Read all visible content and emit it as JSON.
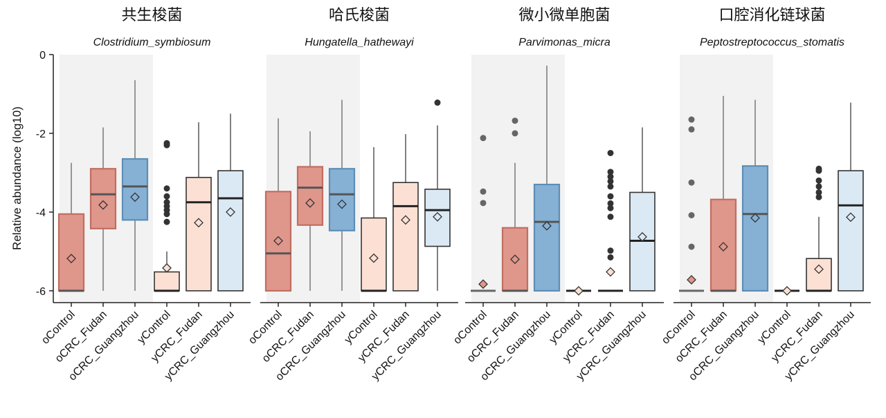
{
  "chart_data": {
    "type": "boxplot",
    "ylabel": "Relative abundance (log10)",
    "ylim": [
      -6.3,
      0
    ],
    "yticks": [
      0,
      -2,
      -4,
      -6
    ],
    "grid": false,
    "legend": "none",
    "categories": [
      "oControl",
      "oCRC_Fudan",
      "oCRC_Guangzhou",
      "yControl",
      "yCRC_Fudan",
      "yCRC_Guangzhou"
    ],
    "colors": {
      "oControl_fill": "#df968b",
      "oControl_line": "#c26d61",
      "oCRC_Fudan_fill": "#df968b",
      "oCRC_Fudan_line": "#c26d61",
      "oCRC_Guangzhou_fill": "#86b1d4",
      "oCRC_Guangzhou_line": "#5c8db6",
      "yControl_fill": "#fde0d4",
      "yControl_line": "#333333",
      "yCRC_Fudan_fill": "#fde0d4",
      "yCRC_Fudan_line": "#333333",
      "yCRC_Guangzhou_fill": "#dbe9f4",
      "yCRC_Guangzhou_line": "#333333",
      "shade": "#f2f2f2"
    },
    "panels": [
      {
        "title_cn": "共生梭菌",
        "title_sp": "Clostridium_symbiosum",
        "boxes": [
          {
            "q1": -6.0,
            "median": -6.0,
            "q3": -4.05,
            "lo": -6.0,
            "hi": -2.75,
            "mean": -5.18,
            "outliers": []
          },
          {
            "q1": -4.42,
            "median": -3.55,
            "q3": -2.9,
            "lo": -6.0,
            "hi": -1.85,
            "mean": -3.82,
            "outliers": []
          },
          {
            "q1": -4.2,
            "median": -3.35,
            "q3": -2.65,
            "lo": -6.0,
            "hi": -0.65,
            "mean": -3.62,
            "outliers": []
          },
          {
            "q1": -6.0,
            "median": -6.0,
            "q3": -5.52,
            "lo": -6.0,
            "hi": -5.0,
            "mean": -5.42,
            "outliers": [
              -2.25,
              -2.3,
              -3.4,
              -3.6,
              -3.75,
              -3.85,
              -3.95,
              -4.05,
              -4.25
            ]
          },
          {
            "q1": -6.0,
            "median": -3.75,
            "q3": -3.12,
            "lo": -6.0,
            "hi": -1.72,
            "mean": -4.27,
            "outliers": []
          },
          {
            "q1": -6.0,
            "median": -3.65,
            "q3": -2.95,
            "lo": -6.0,
            "hi": -1.5,
            "mean": -4.0,
            "outliers": []
          }
        ]
      },
      {
        "title_cn": "哈氏梭菌",
        "title_sp": "Hungatella_hathewayi",
        "boxes": [
          {
            "q1": -6.0,
            "median": -5.05,
            "q3": -3.48,
            "lo": -6.0,
            "hi": -1.62,
            "mean": -4.73,
            "outliers": []
          },
          {
            "q1": -4.33,
            "median": -3.38,
            "q3": -2.85,
            "lo": -6.0,
            "hi": -1.95,
            "mean": -3.77,
            "outliers": []
          },
          {
            "q1": -4.47,
            "median": -3.55,
            "q3": -2.9,
            "lo": -6.0,
            "hi": -1.15,
            "mean": -3.8,
            "outliers": []
          },
          {
            "q1": -6.0,
            "median": -6.0,
            "q3": -4.15,
            "lo": -6.0,
            "hi": -2.35,
            "mean": -5.17,
            "outliers": []
          },
          {
            "q1": -6.0,
            "median": -3.85,
            "q3": -3.25,
            "lo": -6.0,
            "hi": -2.02,
            "mean": -4.2,
            "outliers": []
          },
          {
            "q1": -4.87,
            "median": -3.95,
            "q3": -3.42,
            "lo": -6.0,
            "hi": -1.8,
            "mean": -4.12,
            "outliers": [
              -1.22
            ]
          }
        ]
      },
      {
        "title_cn": "微小微单胞菌",
        "title_sp": "Parvimonas_micra",
        "boxes": [
          {
            "q1": -6.0,
            "median": -6.0,
            "q3": -6.0,
            "lo": -6.0,
            "hi": -6.0,
            "mean": -5.83,
            "outliers": [
              -2.12,
              -3.48,
              -3.77
            ]
          },
          {
            "q1": -6.0,
            "median": -6.0,
            "q3": -4.4,
            "lo": -6.0,
            "hi": -2.75,
            "mean": -5.2,
            "outliers": [
              -1.68,
              -2.0
            ]
          },
          {
            "q1": -6.0,
            "median": -4.25,
            "q3": -3.3,
            "lo": -6.0,
            "hi": -0.28,
            "mean": -4.35,
            "outliers": []
          },
          {
            "q1": -6.0,
            "median": -6.0,
            "q3": -6.0,
            "lo": -6.0,
            "hi": -6.0,
            "mean": -6.0,
            "outliers": []
          },
          {
            "q1": -6.0,
            "median": -6.0,
            "q3": -6.0,
            "lo": -6.0,
            "hi": -6.0,
            "mean": -5.52,
            "outliers": [
              -2.5,
              -2.98,
              -3.1,
              -3.22,
              -3.35,
              -3.6,
              -3.78,
              -3.9,
              -4.12,
              -4.98,
              -5.15
            ]
          },
          {
            "q1": -6.0,
            "median": -4.73,
            "q3": -3.5,
            "lo": -6.0,
            "hi": -1.85,
            "mean": -4.63,
            "outliers": []
          }
        ]
      },
      {
        "title_cn": "口腔消化链球菌",
        "title_sp": "Peptostreptococcus_stomatis",
        "boxes": [
          {
            "q1": -6.0,
            "median": -6.0,
            "q3": -6.0,
            "lo": -6.0,
            "hi": -6.0,
            "mean": -5.72,
            "outliers": [
              -1.65,
              -1.9,
              -3.25,
              -4.08,
              -4.88
            ]
          },
          {
            "q1": -6.0,
            "median": -6.0,
            "q3": -3.68,
            "lo": -6.0,
            "hi": -1.05,
            "mean": -4.88,
            "outliers": []
          },
          {
            "q1": -6.0,
            "median": -4.05,
            "q3": -2.83,
            "lo": -6.0,
            "hi": -1.15,
            "mean": -4.15,
            "outliers": []
          },
          {
            "q1": -6.0,
            "median": -6.0,
            "q3": -6.0,
            "lo": -6.0,
            "hi": -6.0,
            "mean": -6.0,
            "outliers": []
          },
          {
            "q1": -6.0,
            "median": -6.0,
            "q3": -5.18,
            "lo": -6.0,
            "hi": -4.12,
            "mean": -5.45,
            "outliers": [
              -2.9,
              -2.95,
              -3.2,
              -3.35,
              -3.5,
              -3.62
            ]
          },
          {
            "q1": -6.0,
            "median": -3.83,
            "q3": -2.95,
            "lo": -6.0,
            "hi": -1.22,
            "mean": -4.13,
            "outliers": []
          }
        ]
      }
    ]
  }
}
